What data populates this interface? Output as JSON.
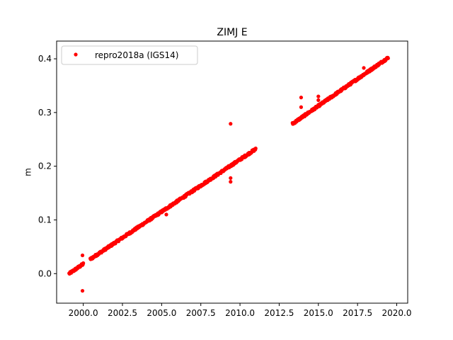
{
  "chart_data": {
    "type": "scatter",
    "title": "ZIMJ E",
    "xlabel": "",
    "ylabel": "m",
    "xlim": [
      1998.3,
      2020.7
    ],
    "ylim": [
      -0.055,
      0.433
    ],
    "xticks": [
      2000.0,
      2002.5,
      2005.0,
      2007.5,
      2010.0,
      2012.5,
      2015.0,
      2017.5,
      2020.0
    ],
    "xtick_labels": [
      "2000.0",
      "2002.5",
      "2005.0",
      "2007.5",
      "2010.0",
      "2012.5",
      "2015.0",
      "2017.5",
      "2020.0"
    ],
    "yticks": [
      0.0,
      0.1,
      0.2,
      0.3,
      0.4
    ],
    "ytick_labels": [
      "0.0",
      "0.1",
      "0.2",
      "0.3",
      "0.4"
    ],
    "grid": false,
    "legend_position": "top-left",
    "color": "#ff0000",
    "series": [
      {
        "name": "repro2018a (IGS14)",
        "segments": [
          {
            "x_start": 1999.1,
            "x_end": 2000.0,
            "y_start": 0.0,
            "y_end": 0.018
          },
          {
            "x_start": 2000.45,
            "x_end": 2011.0,
            "y_start": 0.027,
            "y_end": 0.232
          },
          {
            "x_start": 2013.35,
            "x_end": 2019.45,
            "y_start": 0.279,
            "y_end": 0.402
          }
        ],
        "outliers": [
          {
            "x": 1999.95,
            "y": 0.034
          },
          {
            "x": 1999.95,
            "y": -0.032
          },
          {
            "x": 2009.4,
            "y": 0.279
          },
          {
            "x": 2009.4,
            "y": 0.178
          },
          {
            "x": 2009.4,
            "y": 0.171
          },
          {
            "x": 2013.9,
            "y": 0.328
          },
          {
            "x": 2013.9,
            "y": 0.31
          },
          {
            "x": 2015.0,
            "y": 0.33
          },
          {
            "x": 2015.0,
            "y": 0.323
          },
          {
            "x": 2005.3,
            "y": 0.11
          },
          {
            "x": 2017.9,
            "y": 0.383
          }
        ]
      }
    ]
  }
}
